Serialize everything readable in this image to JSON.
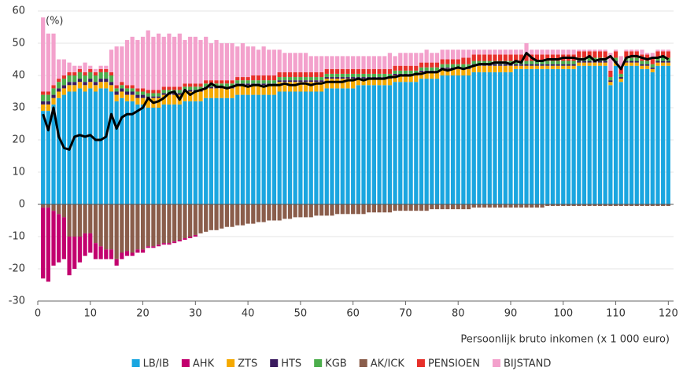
{
  "chart_data": {
    "type": "bar",
    "stacked": true,
    "y_unit_label": "(%)",
    "x_label": "Persoonlijk bruto inkomen (x 1 000 euro)",
    "xlim": [
      0,
      121
    ],
    "xticks": [
      0,
      10,
      20,
      30,
      40,
      50,
      60,
      70,
      80,
      90,
      100,
      110,
      120
    ],
    "ylim": [
      -30,
      60
    ],
    "yticks": [
      -30,
      -20,
      -10,
      0,
      10,
      20,
      30,
      40,
      50,
      60
    ],
    "grid": true,
    "legend": "bottom",
    "x": [
      1,
      2,
      3,
      4,
      5,
      6,
      7,
      8,
      9,
      10,
      11,
      12,
      13,
      14,
      15,
      16,
      17,
      18,
      19,
      20,
      21,
      22,
      23,
      24,
      25,
      26,
      27,
      28,
      29,
      30,
      31,
      32,
      33,
      34,
      35,
      36,
      37,
      38,
      39,
      40,
      41,
      42,
      43,
      44,
      45,
      46,
      47,
      48,
      49,
      50,
      51,
      52,
      53,
      54,
      55,
      56,
      57,
      58,
      59,
      60,
      61,
      62,
      63,
      64,
      65,
      66,
      67,
      68,
      69,
      70,
      71,
      72,
      73,
      74,
      75,
      76,
      77,
      78,
      79,
      80,
      81,
      82,
      83,
      84,
      85,
      86,
      87,
      88,
      89,
      90,
      91,
      92,
      93,
      94,
      95,
      96,
      97,
      98,
      99,
      100,
      101,
      102,
      103,
      104,
      105,
      106,
      107,
      108,
      109,
      110,
      111,
      112,
      113,
      114,
      115,
      116,
      117,
      118,
      119,
      120
    ],
    "series": [
      {
        "name": "LB/IB",
        "color": "#1aa6e0",
        "values": [
          29,
          29,
          31,
          33,
          34,
          35,
          35,
          36,
          35,
          36,
          35,
          36,
          36,
          35,
          32,
          33,
          32,
          32,
          31,
          31,
          30,
          30,
          30,
          31,
          31,
          31,
          31,
          32,
          32,
          32,
          32,
          33,
          33,
          33,
          33,
          33,
          33,
          34,
          34,
          34,
          34,
          34,
          34,
          34,
          34,
          35,
          35,
          35,
          35,
          35,
          35,
          35,
          35,
          35,
          36,
          36,
          36,
          36,
          36,
          36,
          37,
          37,
          37,
          37,
          37,
          37,
          37,
          38,
          38,
          38,
          38,
          38,
          39,
          39,
          39,
          39,
          40,
          40,
          40,
          40,
          40,
          40,
          41,
          41,
          41,
          41,
          41,
          41,
          41,
          41,
          42,
          42,
          42,
          42,
          42,
          42,
          42,
          42,
          42,
          42,
          42,
          42,
          43,
          43,
          43,
          43,
          43,
          43,
          37,
          43,
          38,
          43,
          43,
          43,
          42,
          42,
          41,
          43,
          43,
          43
        ]
      },
      {
        "name": "AHK",
        "color": "#c2006e",
        "values": [
          -22,
          -23,
          -17,
          -15,
          -13,
          -12,
          -10,
          -8,
          -7,
          -6,
          -5,
          -4,
          -3,
          -3,
          -2,
          -2,
          -1.5,
          -1,
          -1,
          -1,
          -0.5,
          -0.5,
          -0.5,
          -0.5,
          -0.5,
          -0.5,
          -0.5,
          -0.5,
          -0.5,
          -0.5,
          0,
          0,
          0,
          0,
          0,
          0,
          0,
          0,
          0,
          0,
          0,
          0,
          0,
          0,
          0,
          0,
          0,
          0,
          0,
          0,
          0,
          0,
          0,
          0,
          0,
          0,
          0,
          0,
          0,
          0,
          0,
          0,
          0,
          0,
          0,
          0,
          0,
          0,
          0,
          0,
          0,
          0,
          0,
          0,
          0,
          0,
          0,
          0,
          0,
          0,
          0,
          0,
          0,
          0,
          0,
          0,
          0,
          0,
          0,
          0,
          0,
          0,
          0,
          0,
          0,
          0,
          0,
          0,
          0,
          0,
          0,
          0,
          0,
          0,
          0,
          0,
          0,
          0,
          0,
          0,
          0,
          0,
          0,
          0,
          0,
          0,
          0,
          0,
          0,
          0
        ]
      },
      {
        "name": "ZTS",
        "color": "#f5a900",
        "values": [
          2,
          2,
          2,
          2,
          2,
          2,
          2,
          2,
          2,
          2,
          2,
          2,
          2,
          2,
          2,
          2,
          2,
          2,
          2,
          2,
          3,
          3,
          3,
          3,
          3,
          3,
          3,
          3,
          3,
          3,
          3,
          3,
          3,
          3,
          3,
          3,
          3,
          3,
          3,
          3,
          3,
          3,
          3,
          3,
          3,
          3,
          3,
          3,
          3,
          3,
          3,
          3,
          3,
          3,
          3,
          3,
          3,
          3,
          3,
          3,
          2,
          2,
          2,
          2,
          2,
          2,
          2,
          2,
          2,
          2,
          2,
          2,
          2,
          2,
          2,
          2,
          2,
          2,
          2,
          2,
          2,
          2,
          2,
          2,
          2,
          2,
          2,
          2,
          2,
          2,
          1,
          1,
          1,
          1,
          1,
          1,
          1,
          1,
          1,
          1,
          1,
          1,
          1,
          1,
          1,
          1,
          1,
          1,
          1,
          1,
          1,
          1,
          1,
          1,
          1,
          1,
          1,
          1,
          1,
          1
        ]
      },
      {
        "name": "HTS",
        "color": "#3b1b5f",
        "values": [
          1,
          1,
          1,
          1,
          1,
          1,
          1,
          1,
          1,
          1,
          1,
          1,
          1,
          1,
          1,
          1,
          1,
          1,
          1,
          1,
          0.5,
          0.5,
          0.5,
          0.5,
          0.5,
          0.5,
          0.5,
          0.5,
          0.5,
          0.5,
          0.5,
          0.5,
          0.5,
          0.5,
          0.5,
          0.5,
          0.5,
          0.5,
          0.5,
          0.5,
          0.5,
          0.5,
          0.5,
          0.5,
          0.5,
          0.5,
          0.5,
          0.5,
          0.5,
          0.5,
          0.5,
          0.5,
          0.5,
          0.5,
          0.5,
          0.5,
          0.5,
          0.5,
          0.5,
          0.5,
          0.5,
          0.5,
          0.5,
          0.5,
          0.5,
          0.5,
          0.5,
          0.5,
          0.5,
          0.5,
          0.5,
          0.5,
          0.5,
          0.5,
          0.5,
          0.5,
          0.5,
          0.5,
          0.5,
          0.5,
          0.5,
          0.5,
          0.5,
          0.5,
          0.5,
          0.5,
          0.5,
          0.5,
          0.5,
          0.5,
          0.5,
          0.5,
          0.5,
          0.5,
          0.5,
          0.5,
          0.5,
          0.5,
          0.5,
          0.5,
          0.5,
          0.5,
          0.5,
          0.5,
          0.5,
          0.5,
          0.5,
          0.5,
          0.5,
          0.5,
          0.5,
          0.5,
          0.5,
          0.5,
          0.5,
          0.5,
          0.5,
          0.5,
          0.5,
          0.5
        ]
      },
      {
        "name": "KGB",
        "color": "#4cae4c",
        "values": [
          2,
          2,
          2,
          2,
          2,
          2,
          2,
          2,
          2,
          2,
          2,
          2,
          2,
          2,
          1,
          1,
          1,
          1,
          1,
          1,
          1,
          1,
          1,
          1,
          1,
          1,
          1,
          1,
          1,
          1,
          1,
          1,
          1,
          1,
          1,
          1,
          1,
          1,
          1,
          1,
          1,
          1,
          1,
          1,
          1,
          1,
          1,
          1,
          1,
          1,
          1,
          1,
          1,
          1,
          1,
          1,
          1,
          1,
          1,
          1,
          1,
          1,
          1,
          1,
          1,
          1,
          1,
          1,
          1,
          1,
          1,
          1,
          1,
          1,
          1,
          1,
          1,
          1,
          1,
          1,
          1,
          1,
          1,
          1,
          1,
          1,
          1,
          1,
          1,
          1,
          1,
          1,
          1,
          1,
          1,
          1,
          1,
          1,
          1,
          1,
          1,
          1,
          1,
          1,
          1,
          1,
          1,
          1,
          1,
          1,
          1,
          1,
          1,
          1,
          1,
          1,
          1,
          1,
          1,
          1
        ]
      },
      {
        "name": "AK/ICK",
        "color": "#8a5d4b",
        "values": [
          -1,
          -1,
          -2,
          -3,
          -4,
          -10,
          -10,
          -10,
          -9,
          -9,
          -12,
          -13,
          -14,
          -14,
          -17,
          -15,
          -14.5,
          -15,
          -14,
          -14,
          -13,
          -13,
          -12.5,
          -12,
          -12,
          -11.5,
          -11,
          -10.5,
          -10,
          -9.5,
          -9,
          -8.5,
          -8,
          -8,
          -7.5,
          -7,
          -7,
          -6.5,
          -6.5,
          -6,
          -6,
          -5.5,
          -5.5,
          -5,
          -5,
          -5,
          -4.5,
          -4.5,
          -4,
          -4,
          -4,
          -4,
          -3.5,
          -3.5,
          -3.5,
          -3.5,
          -3,
          -3,
          -3,
          -3,
          -3,
          -3,
          -2.5,
          -2.5,
          -2.5,
          -2.5,
          -2.5,
          -2,
          -2,
          -2,
          -2,
          -2,
          -2,
          -2,
          -1.5,
          -1.5,
          -1.5,
          -1.5,
          -1.5,
          -1.5,
          -1.5,
          -1.5,
          -1,
          -1,
          -1,
          -1,
          -1,
          -1,
          -1,
          -1,
          -1,
          -1,
          -1,
          -1,
          -1,
          -1,
          -0.5,
          -0.5,
          -0.5,
          -0.5,
          -0.5,
          -0.5,
          -0.5,
          -0.5,
          -0.5,
          -0.5,
          -0.5,
          -0.5,
          -0.5,
          -0.5,
          -0.5,
          -0.5,
          -0.5,
          -0.5,
          -0.5,
          -0.5,
          -0.5,
          -0.5,
          -0.5,
          -0.5
        ]
      },
      {
        "name": "PENSIOEN",
        "color": "#e7302a",
        "values": [
          1,
          1,
          1,
          1,
          1,
          1,
          1,
          1,
          1,
          1,
          1,
          1,
          1,
          1,
          1,
          1,
          1,
          1,
          1,
          1,
          1,
          1,
          1,
          1,
          1,
          1,
          1,
          1,
          1,
          1,
          1,
          1,
          1,
          1,
          1,
          1,
          1,
          1,
          1,
          1,
          1.5,
          1.5,
          1.5,
          1.5,
          1.5,
          1.5,
          1.5,
          1.5,
          1.5,
          1.5,
          1.5,
          1.5,
          1.5,
          1.5,
          1.5,
          1.5,
          1.5,
          1.5,
          1.5,
          1.5,
          1.5,
          1.5,
          1.5,
          1.5,
          1.5,
          1.5,
          1.5,
          1.5,
          1.5,
          1.5,
          1.5,
          1.5,
          1.5,
          1.5,
          1.5,
          1.5,
          1.5,
          1.5,
          1.5,
          1.5,
          2,
          2,
          2,
          2,
          2,
          2,
          2,
          2,
          2,
          2,
          2,
          2,
          2,
          2,
          2,
          2,
          2,
          2,
          2,
          2,
          2,
          2,
          2,
          2,
          2,
          2,
          2,
          2,
          2,
          2,
          2,
          2,
          2,
          2,
          2,
          2,
          2,
          2,
          2,
          2
        ]
      },
      {
        "name": "BIJSTAND",
        "color": "#f3a1cc",
        "values": [
          23,
          18,
          16,
          6,
          5,
          3,
          2,
          1,
          3,
          1,
          1,
          1,
          1,
          7,
          12,
          11,
          14,
          15,
          15,
          16,
          18.5,
          16.5,
          17.5,
          15.5,
          16.5,
          15.5,
          16.5,
          13.5,
          14.5,
          14.5,
          13.5,
          13.5,
          11.5,
          12.5,
          11.5,
          11.5,
          11.5,
          9.5,
          10.5,
          9.5,
          9,
          8,
          9,
          8,
          8,
          7,
          6,
          6,
          6,
          6,
          6,
          5,
          5,
          5,
          4,
          4,
          4,
          4,
          4,
          4,
          4,
          4,
          4,
          4,
          4,
          4,
          5,
          3,
          4,
          4,
          4,
          4,
          3,
          4,
          3,
          3,
          3,
          3,
          3,
          3,
          2.5,
          2.5,
          1.5,
          1.5,
          1.5,
          1.5,
          1.5,
          1.5,
          1.5,
          1.5,
          1.5,
          1.5,
          3.5,
          1.5,
          1.5,
          1.5,
          1.5,
          1.5,
          1.5,
          1.5,
          1.5,
          1.5,
          0.5,
          0.5,
          0.5,
          0.5,
          0.5,
          0.5,
          5.5,
          0.5,
          3.5,
          0.5,
          0.5,
          0.5,
          1.5,
          0.5,
          1.5,
          0.5,
          0.5,
          0.5
        ]
      }
    ],
    "net_line": {
      "color": "#000000",
      "values": [
        28,
        23,
        30,
        21,
        17.5,
        17,
        21,
        21.5,
        21,
        21.5,
        20,
        20,
        21,
        28,
        23.5,
        27,
        28,
        28,
        29,
        30,
        33,
        31.5,
        32,
        33,
        34.5,
        35,
        32.5,
        35.5,
        34,
        35,
        35.5,
        36,
        37.5,
        36.5,
        36.5,
        36,
        36.5,
        37,
        37,
        36.5,
        37,
        37,
        36.5,
        37,
        37,
        37,
        37.5,
        37,
        37,
        37.5,
        37.5,
        37,
        37.5,
        37.5,
        38,
        38,
        38,
        38,
        38.5,
        38.5,
        39,
        38.5,
        39,
        39,
        39,
        39,
        39.5,
        39.5,
        40,
        40,
        40,
        40.5,
        40.5,
        41,
        41,
        41,
        42,
        41.5,
        42,
        42.5,
        42,
        42.5,
        43,
        43.5,
        43.5,
        43.5,
        44,
        44,
        44,
        43.5,
        44.5,
        44,
        47,
        45.5,
        44.5,
        44.5,
        45,
        45,
        45,
        45.5,
        45.5,
        45.5,
        45,
        45,
        46,
        44.5,
        45,
        45,
        46,
        44,
        42,
        45.5,
        46,
        46,
        45.5,
        45,
        45.5,
        45.5,
        46,
        45
      ]
    }
  }
}
